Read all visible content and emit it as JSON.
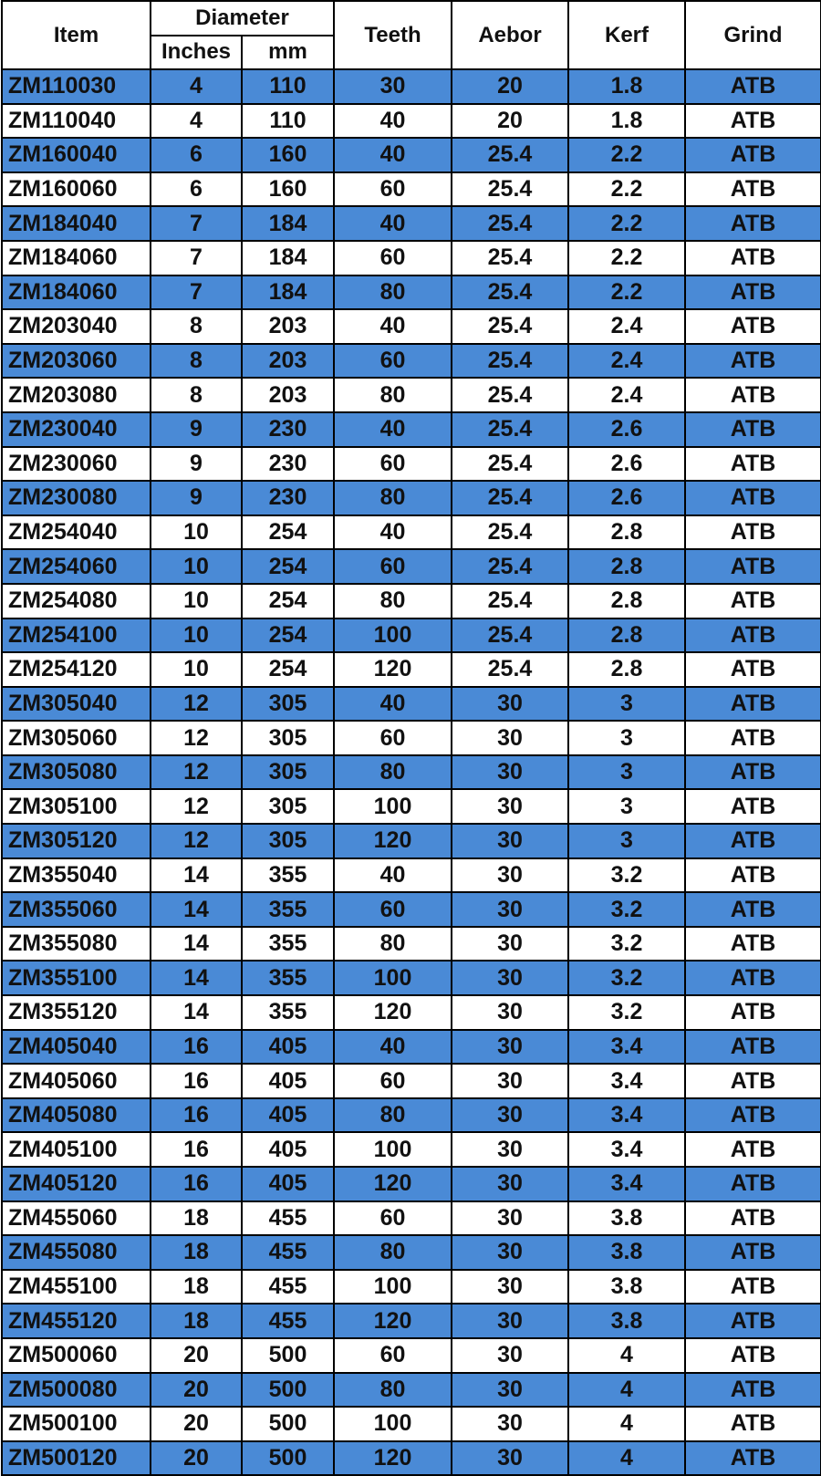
{
  "table": {
    "header": {
      "item": "Item",
      "diameter": "Diameter",
      "inches": "Inches",
      "mm": "mm",
      "teeth": "Teeth",
      "arbor": "Aebor",
      "kerf": "Kerf",
      "grind": "Grind"
    },
    "rows": [
      [
        "ZM110030",
        "4",
        "110",
        "30",
        "20",
        "1.8",
        "ATB"
      ],
      [
        "ZM110040",
        "4",
        "110",
        "40",
        "20",
        "1.8",
        "ATB"
      ],
      [
        "ZM160040",
        "6",
        "160",
        "40",
        "25.4",
        "2.2",
        "ATB"
      ],
      [
        "ZM160060",
        "6",
        "160",
        "60",
        "25.4",
        "2.2",
        "ATB"
      ],
      [
        "ZM184040",
        "7",
        "184",
        "40",
        "25.4",
        "2.2",
        "ATB"
      ],
      [
        "ZM184060",
        "7",
        "184",
        "60",
        "25.4",
        "2.2",
        "ATB"
      ],
      [
        "ZM184060",
        "7",
        "184",
        "80",
        "25.4",
        "2.2",
        "ATB"
      ],
      [
        "ZM203040",
        "8",
        "203",
        "40",
        "25.4",
        "2.4",
        "ATB"
      ],
      [
        "ZM203060",
        "8",
        "203",
        "60",
        "25.4",
        "2.4",
        "ATB"
      ],
      [
        "ZM203080",
        "8",
        "203",
        "80",
        "25.4",
        "2.4",
        "ATB"
      ],
      [
        "ZM230040",
        "9",
        "230",
        "40",
        "25.4",
        "2.6",
        "ATB"
      ],
      [
        "ZM230060",
        "9",
        "230",
        "60",
        "25.4",
        "2.6",
        "ATB"
      ],
      [
        "ZM230080",
        "9",
        "230",
        "80",
        "25.4",
        "2.6",
        "ATB"
      ],
      [
        "ZM254040",
        "10",
        "254",
        "40",
        "25.4",
        "2.8",
        "ATB"
      ],
      [
        "ZM254060",
        "10",
        "254",
        "60",
        "25.4",
        "2.8",
        "ATB"
      ],
      [
        "ZM254080",
        "10",
        "254",
        "80",
        "25.4",
        "2.8",
        "ATB"
      ],
      [
        "ZM254100",
        "10",
        "254",
        "100",
        "25.4",
        "2.8",
        "ATB"
      ],
      [
        "ZM254120",
        "10",
        "254",
        "120",
        "25.4",
        "2.8",
        "ATB"
      ],
      [
        "ZM305040",
        "12",
        "305",
        "40",
        "30",
        "3",
        "ATB"
      ],
      [
        "ZM305060",
        "12",
        "305",
        "60",
        "30",
        "3",
        "ATB"
      ],
      [
        "ZM305080",
        "12",
        "305",
        "80",
        "30",
        "3",
        "ATB"
      ],
      [
        "ZM305100",
        "12",
        "305",
        "100",
        "30",
        "3",
        "ATB"
      ],
      [
        "ZM305120",
        "12",
        "305",
        "120",
        "30",
        "3",
        "ATB"
      ],
      [
        "ZM355040",
        "14",
        "355",
        "40",
        "30",
        "3.2",
        "ATB"
      ],
      [
        "ZM355060",
        "14",
        "355",
        "60",
        "30",
        "3.2",
        "ATB"
      ],
      [
        "ZM355080",
        "14",
        "355",
        "80",
        "30",
        "3.2",
        "ATB"
      ],
      [
        "ZM355100",
        "14",
        "355",
        "100",
        "30",
        "3.2",
        "ATB"
      ],
      [
        "ZM355120",
        "14",
        "355",
        "120",
        "30",
        "3.2",
        "ATB"
      ],
      [
        "ZM405040",
        "16",
        "405",
        "40",
        "30",
        "3.4",
        "ATB"
      ],
      [
        "ZM405060",
        "16",
        "405",
        "60",
        "30",
        "3.4",
        "ATB"
      ],
      [
        "ZM405080",
        "16",
        "405",
        "80",
        "30",
        "3.4",
        "ATB"
      ],
      [
        "ZM405100",
        "16",
        "405",
        "100",
        "30",
        "3.4",
        "ATB"
      ],
      [
        "ZM405120",
        "16",
        "405",
        "120",
        "30",
        "3.4",
        "ATB"
      ],
      [
        "ZM455060",
        "18",
        "455",
        "60",
        "30",
        "3.8",
        "ATB"
      ],
      [
        "ZM455080",
        "18",
        "455",
        "80",
        "30",
        "3.8",
        "ATB"
      ],
      [
        "ZM455100",
        "18",
        "455",
        "100",
        "30",
        "3.8",
        "ATB"
      ],
      [
        "ZM455120",
        "18",
        "455",
        "120",
        "30",
        "3.8",
        "ATB"
      ],
      [
        "ZM500060",
        "20",
        "500",
        "60",
        "30",
        "4",
        "ATB"
      ],
      [
        "ZM500080",
        "20",
        "500",
        "80",
        "30",
        "4",
        "ATB"
      ],
      [
        "ZM500100",
        "20",
        "500",
        "100",
        "30",
        "4",
        "ATB"
      ],
      [
        "ZM500120",
        "20",
        "500",
        "120",
        "30",
        "4",
        "ATB"
      ]
    ]
  }
}
